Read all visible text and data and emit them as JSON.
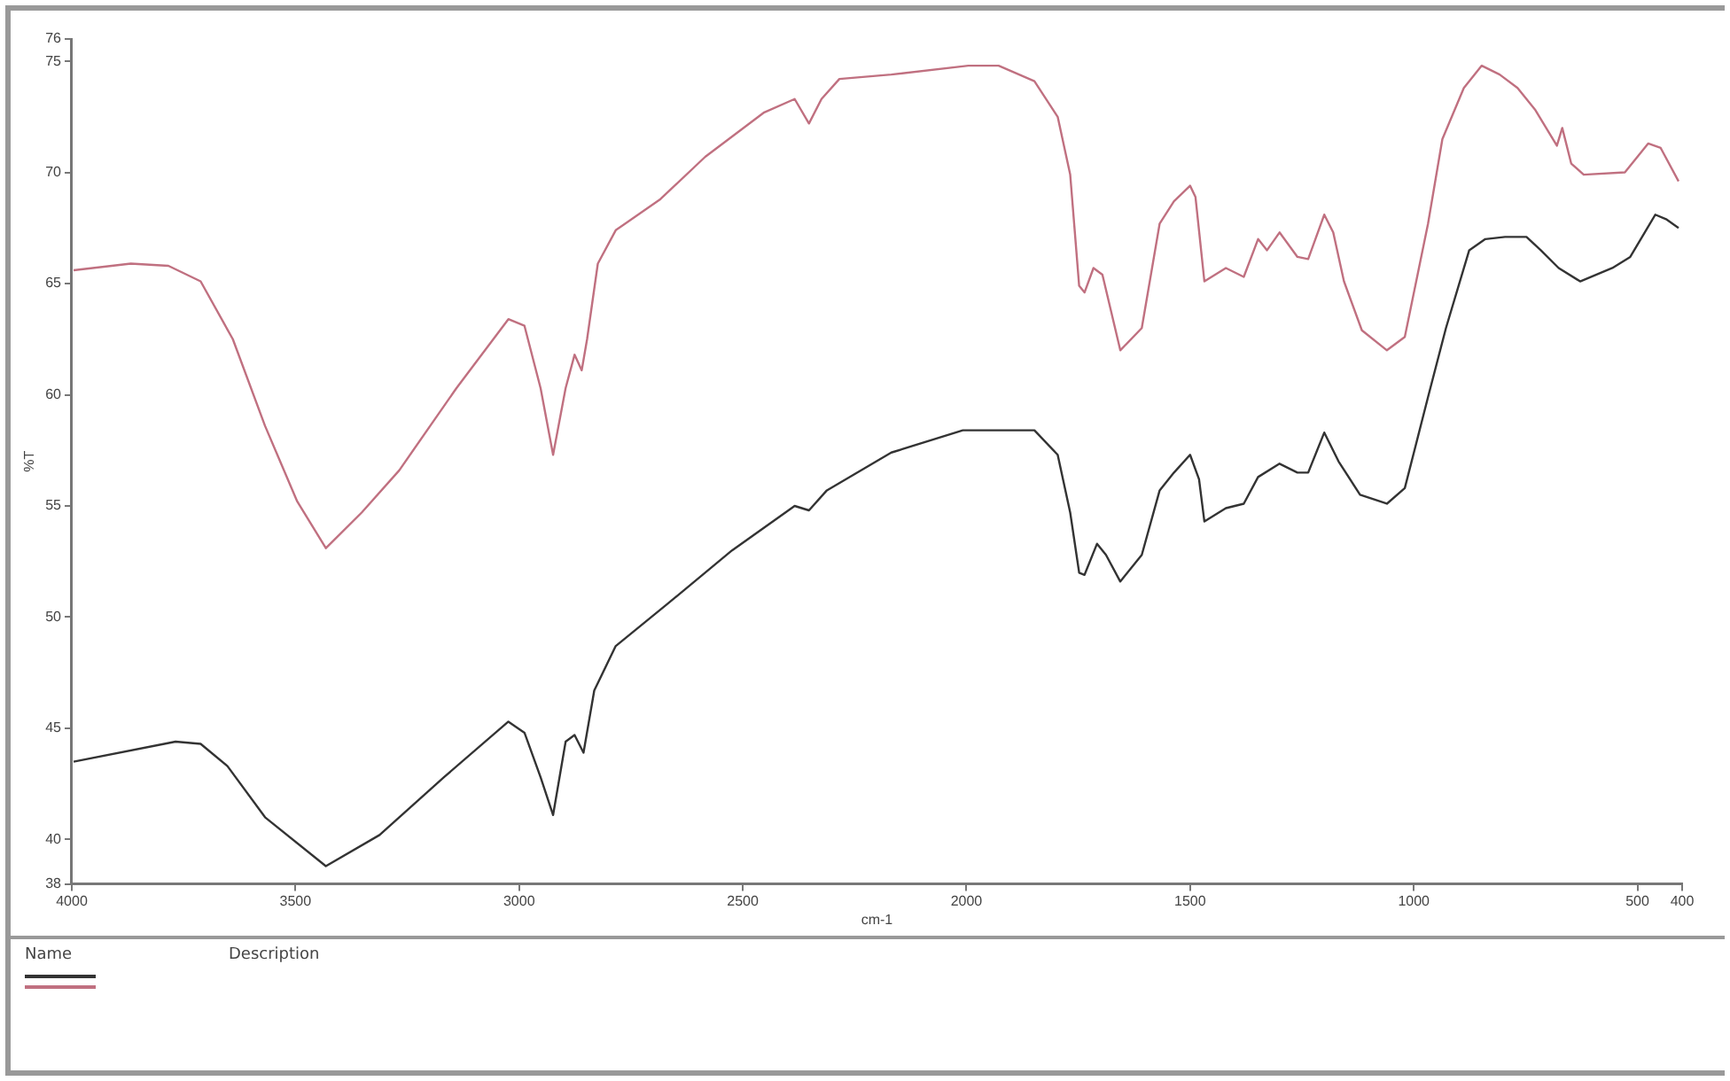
{
  "chart_data": {
    "type": "line",
    "xlabel": "cm-1",
    "ylabel": "%T",
    "xlim": [
      4000,
      400
    ],
    "xticks": [
      4000,
      3500,
      3000,
      2500,
      2000,
      1500,
      1000,
      500,
      400
    ],
    "ylim": [
      38,
      76
    ],
    "yticks": [
      38,
      40,
      45,
      50,
      55,
      60,
      65,
      70,
      75,
      76
    ],
    "grid": false,
    "legend": false,
    "marker": "none",
    "line_style": "solid",
    "annotations": [
      "Name",
      "Description"
    ],
    "series": [
      {
        "color": "#333333",
        "x": [
          3996,
          3768,
          3712,
          3652,
          3568,
          3432,
          3312,
          3168,
          3024,
          2988,
          2952,
          2924,
          2896,
          2876,
          2856,
          2832,
          2784,
          2668,
          2524,
          2384,
          2352,
          2312,
          2168,
          2008,
          1928,
          1848,
          1796,
          1768,
          1748,
          1736,
          1708,
          1688,
          1656,
          1608,
          1568,
          1536,
          1500,
          1480,
          1468,
          1420,
          1380,
          1348,
          1300,
          1260,
          1236,
          1200,
          1168,
          1120,
          1060,
          1020,
          968,
          928,
          876,
          840,
          796,
          748,
          716,
          676,
          628,
          556,
          516,
          460,
          436,
          408
        ],
        "values": [
          43.5,
          44.4,
          44.3,
          43.3,
          41.0,
          38.8,
          40.2,
          42.8,
          45.3,
          44.8,
          42.8,
          41.1,
          44.4,
          44.7,
          43.9,
          46.7,
          48.7,
          50.6,
          53.0,
          55.0,
          54.8,
          55.7,
          57.4,
          58.4,
          58.4,
          58.4,
          57.3,
          54.7,
          52.0,
          51.9,
          53.3,
          52.8,
          51.6,
          52.8,
          55.7,
          56.5,
          57.3,
          56.2,
          54.3,
          54.9,
          55.1,
          56.3,
          56.9,
          56.5,
          56.5,
          58.3,
          57.0,
          55.5,
          55.1,
          55.8,
          59.9,
          63.0,
          66.5,
          67.0,
          67.1,
          67.1,
          66.5,
          65.7,
          65.1,
          65.7,
          66.2,
          68.1,
          67.9,
          67.5
        ]
      },
      {
        "color": "#c07080",
        "x": [
          3996,
          3868,
          3784,
          3712,
          3640,
          3568,
          3496,
          3432,
          3352,
          3268,
          3140,
          3024,
          2988,
          2952,
          2924,
          2896,
          2876,
          2860,
          2848,
          2824,
          2784,
          2684,
          2584,
          2452,
          2384,
          2352,
          2324,
          2284,
          2168,
          1996,
          1928,
          1848,
          1796,
          1768,
          1748,
          1736,
          1716,
          1696,
          1656,
          1608,
          1568,
          1536,
          1500,
          1488,
          1468,
          1420,
          1380,
          1348,
          1328,
          1300,
          1260,
          1236,
          1200,
          1180,
          1156,
          1116,
          1060,
          1020,
          968,
          936,
          888,
          848,
          808,
          768,
          728,
          680,
          668,
          648,
          620,
          528,
          476,
          448,
          408
        ],
        "values": [
          65.6,
          65.9,
          65.8,
          65.1,
          62.5,
          58.6,
          55.2,
          53.1,
          54.7,
          56.6,
          60.3,
          63.4,
          63.1,
          60.3,
          57.3,
          60.3,
          61.8,
          61.1,
          62.5,
          65.9,
          67.4,
          68.8,
          70.7,
          72.7,
          73.3,
          72.2,
          73.3,
          74.2,
          74.4,
          74.8,
          74.8,
          74.1,
          72.5,
          69.9,
          64.9,
          64.6,
          65.7,
          65.4,
          62.0,
          63.0,
          67.7,
          68.7,
          69.4,
          68.9,
          65.1,
          65.7,
          65.3,
          67.0,
          66.5,
          67.3,
          66.2,
          66.1,
          68.1,
          67.3,
          65.1,
          62.9,
          62.0,
          62.6,
          67.7,
          71.5,
          73.8,
          74.8,
          74.4,
          73.8,
          72.8,
          71.2,
          72.0,
          70.4,
          69.9,
          70.0,
          71.3,
          71.1,
          69.6
        ]
      }
    ]
  }
}
